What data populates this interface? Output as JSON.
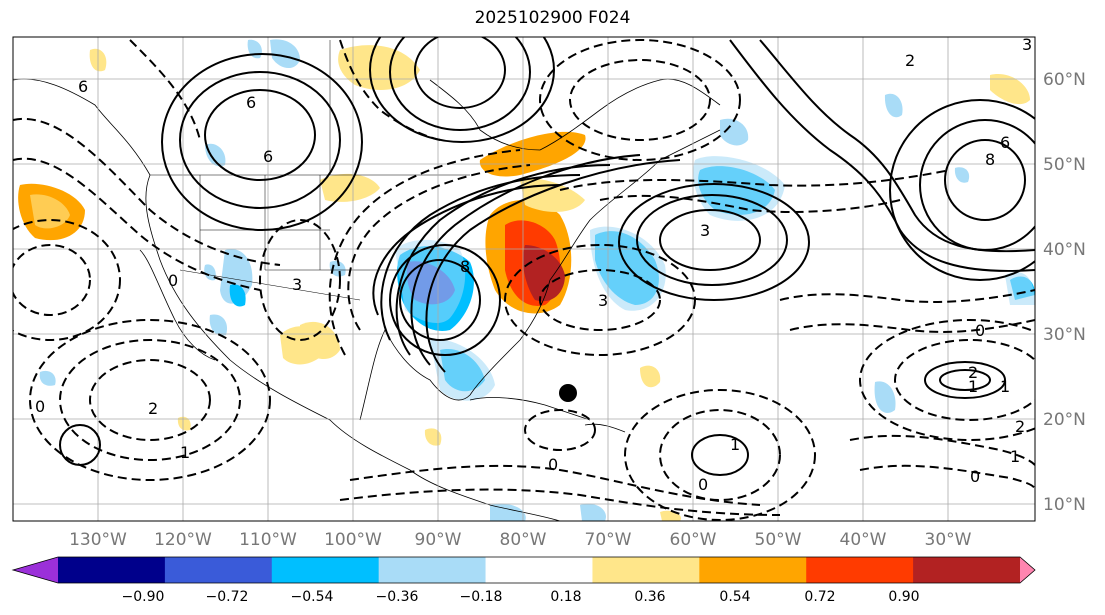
{
  "title": "2025102900 F024",
  "latitude_labels": [
    "60°N",
    "50°N",
    "40°N",
    "30°N",
    "20°N",
    "10°N"
  ],
  "longitude_labels": [
    "130°W",
    "120°W",
    "110°W",
    "100°W",
    "90°W",
    "80°W",
    "70°W",
    "60°W",
    "50°W",
    "40°W",
    "30°W"
  ],
  "colorbar": {
    "ticks": [
      "−0.90",
      "−0.72",
      "−0.54",
      "−0.36",
      "−0.18",
      "0.18",
      "0.36",
      "0.54",
      "0.72",
      "0.90"
    ],
    "colors": [
      "#9b30d9",
      "#00008b",
      "#3a5bd9",
      "#00bfff",
      "#a9dcf7",
      "#ffffff",
      "#ffe68a",
      "#ffa500",
      "#ff3b00",
      "#b22222",
      "#ff85b0"
    ]
  },
  "contour_labels": [
    "6",
    "6",
    "6",
    "6",
    "8",
    "8",
    "3",
    "3",
    "3",
    "3",
    "2",
    "2",
    "2",
    "1",
    "1",
    "1",
    "0",
    "0",
    "0",
    "0",
    "0",
    "0",
    "1",
    "1",
    "2"
  ],
  "storm_marker": "black-dot"
}
